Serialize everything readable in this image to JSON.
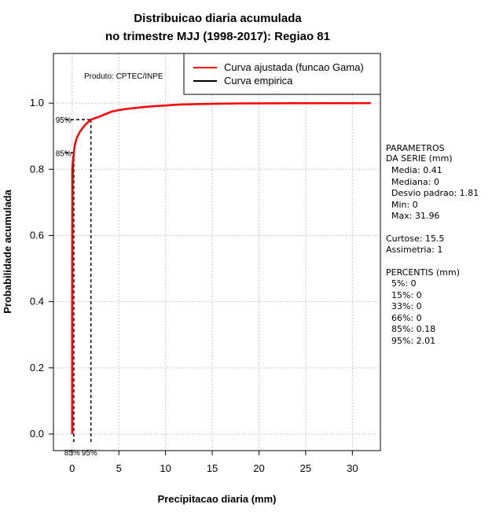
{
  "chart_data": {
    "type": "line",
    "title": [
      "Distribuicao diaria acumulada",
      "no trimestre MJJ (1998-2017): Regiao 81"
    ],
    "xlabel": "Precipitacao diaria (mm)",
    "ylabel": "Probabilidade acumulada",
    "xlim": [
      -2,
      33
    ],
    "ylim": [
      -0.05,
      1.15
    ],
    "x_ticks": [
      0,
      5,
      10,
      15,
      20,
      25,
      30
    ],
    "y_ticks": [
      0.0,
      0.2,
      0.4,
      0.6,
      0.8,
      1.0
    ],
    "grid": true,
    "legend": {
      "position": "top-right",
      "entries": [
        {
          "label": "Curva ajustada (funcao Gama)",
          "color": "#ff0000"
        },
        {
          "label": "Curva empirica",
          "color": "#000000"
        }
      ]
    },
    "product_note": "Produto: CPTEC/INPE",
    "series": [
      {
        "name": "Curva ajustada (funcao Gama)",
        "color": "#ff0000",
        "x": [
          0,
          0,
          0.02,
          0.05,
          0.1,
          0.18,
          0.3,
          0.5,
          0.8,
          1.2,
          1.6,
          2.01,
          2.5,
          3,
          3.5,
          4.2,
          5,
          6,
          7,
          8,
          9,
          10,
          11,
          12,
          13.5,
          15,
          18,
          22,
          26,
          31.96
        ],
        "y": [
          0,
          0.35,
          0.6,
          0.75,
          0.82,
          0.85,
          0.875,
          0.895,
          0.912,
          0.928,
          0.94,
          0.95,
          0.955,
          0.96,
          0.966,
          0.974,
          0.979,
          0.983,
          0.986,
          0.989,
          0.991,
          0.993,
          0.995,
          0.996,
          0.997,
          0.998,
          0.999,
          0.9995,
          0.9998,
          1.0
        ]
      },
      {
        "name": "Curva empirica",
        "color": "#000000",
        "x": [
          0,
          0,
          0.01,
          0.05,
          0.1,
          0.18,
          0.3,
          0.5,
          0.8,
          1.2,
          1.6,
          2.01,
          2.5,
          3,
          3.5,
          4.2,
          5,
          6,
          7,
          8,
          9,
          10,
          11,
          12,
          13.5,
          15,
          18,
          22,
          26,
          31.96
        ],
        "y": [
          0.35,
          0.78,
          0.8,
          0.82,
          0.835,
          0.85,
          0.875,
          0.895,
          0.912,
          0.928,
          0.94,
          0.95,
          0.955,
          0.96,
          0.966,
          0.974,
          0.979,
          0.983,
          0.986,
          0.989,
          0.991,
          0.993,
          0.995,
          0.996,
          0.997,
          0.998,
          0.999,
          0.9995,
          0.9998,
          1.0
        ]
      }
    ],
    "annotations": [
      {
        "name": "p85",
        "x": 0.18,
        "y": 0.85,
        "y_label": "85%",
        "x_label": "85%"
      },
      {
        "name": "p95",
        "x": 2.01,
        "y": 0.95,
        "y_label": "95%",
        "x_label": "95%"
      }
    ]
  },
  "side_panel": {
    "params_title": "PARAMETROS\nDA SERIE (mm)",
    "params": [
      "Media: 0.41",
      "Mediana: 0",
      "Desvio padrao: 1.81",
      "Min: 0",
      "Max: 31.96"
    ],
    "curtose": "Curtose: 15.5",
    "assimetria": "Assimetria: 1",
    "percentis_title": "PERCENTIS (mm)",
    "percentis": [
      "5%: 0",
      "15%: 0",
      "33%: 0",
      "66%: 0",
      "85%: 0.18",
      "95%: 2.01"
    ]
  }
}
